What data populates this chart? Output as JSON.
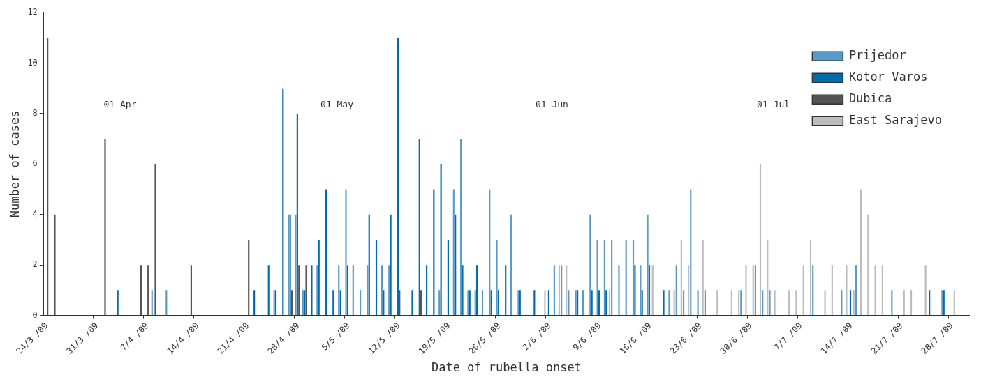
{
  "chart_data": {
    "type": "bar",
    "xlabel": "Date of rubella onset",
    "ylabel": "Number of cases",
    "categories": [
      "24/3 /09",
      null,
      null,
      null,
      null,
      null,
      null,
      "31/3 /09",
      null,
      null,
      null,
      null,
      null,
      null,
      "7/4 /09",
      null,
      null,
      null,
      null,
      null,
      null,
      "14/4 /09",
      null,
      null,
      null,
      null,
      null,
      null,
      "21/4 /09",
      null,
      null,
      null,
      null,
      null,
      null,
      "28/4 /09",
      null,
      null,
      null,
      null,
      null,
      null,
      "5/5 /09",
      null,
      null,
      null,
      null,
      null,
      null,
      "12/5 /09",
      null,
      null,
      null,
      null,
      null,
      null,
      "19/5 /09",
      null,
      null,
      null,
      null,
      null,
      null,
      "26/5 /09",
      null,
      null,
      null,
      null,
      null,
      null,
      "2/6 /09",
      null,
      null,
      null,
      null,
      null,
      null,
      "9/6 /09",
      null,
      null,
      null,
      null,
      null,
      null,
      "16/6 /09",
      null,
      null,
      null,
      null,
      null,
      null,
      "23/6 /09",
      null,
      null,
      null,
      null,
      null,
      null,
      "30/6 /09",
      null,
      null,
      null,
      null,
      null,
      null,
      "7/7 /09",
      null,
      null,
      null,
      null,
      null,
      null,
      "14/7 /09",
      null,
      null,
      null,
      null,
      null,
      null,
      "21/7 /09",
      null,
      null,
      null,
      null,
      null,
      null,
      "28/7 /09",
      null,
      null
    ],
    "series": [
      {
        "name": "Prijedor",
        "color": "#5a9ac9",
        "values": [
          0,
          0,
          0,
          0,
          0,
          0,
          0,
          0,
          0,
          0,
          0,
          0,
          0,
          0,
          0,
          1,
          0,
          1,
          0,
          0,
          0,
          0,
          0,
          0,
          0,
          0,
          0,
          0,
          0,
          0,
          0,
          0,
          1,
          0,
          4,
          4,
          1,
          0,
          2,
          0,
          0,
          2,
          5,
          2,
          1,
          2,
          0,
          2,
          2,
          0,
          0,
          0,
          0,
          0,
          0,
          1,
          0,
          5,
          7,
          1,
          1,
          1,
          5,
          3,
          0,
          4,
          1,
          0,
          0,
          0,
          0,
          2,
          2,
          1,
          1,
          1,
          4,
          3,
          3,
          3,
          2,
          3,
          3,
          2,
          4,
          0,
          0,
          1,
          2,
          1,
          5,
          1,
          1,
          0,
          0,
          0,
          0,
          1,
          0,
          2,
          1,
          1,
          0,
          0,
          0,
          0,
          0,
          2,
          0,
          0,
          0,
          1,
          0,
          2,
          0,
          0,
          0,
          0,
          1,
          0,
          0,
          0,
          0,
          0,
          0,
          1,
          0,
          0,
          0
        ]
      },
      {
        "name": "Kotor Varos",
        "color": "#006bad",
        "values": [
          0,
          0,
          0,
          0,
          0,
          0,
          0,
          0,
          0,
          0,
          1,
          0,
          0,
          0,
          0,
          0,
          0,
          0,
          0,
          0,
          0,
          0,
          0,
          0,
          0,
          0,
          0,
          0,
          0,
          1,
          0,
          2,
          1,
          9,
          4,
          8,
          1,
          2,
          3,
          5,
          1,
          1,
          2,
          0,
          0,
          4,
          3,
          1,
          4,
          11,
          0,
          1,
          7,
          2,
          5,
          6,
          3,
          4,
          2,
          1,
          2,
          0,
          1,
          1,
          2,
          0,
          1,
          0,
          1,
          0,
          1,
          0,
          0,
          0,
          1,
          0,
          1,
          1,
          1,
          0,
          0,
          0,
          2,
          1,
          2,
          0,
          1,
          0,
          0,
          0,
          0,
          0,
          0,
          0,
          0,
          0,
          0,
          0,
          0,
          0,
          0,
          0,
          0,
          0,
          0,
          0,
          0,
          0,
          0,
          0,
          0,
          0,
          1,
          0,
          0,
          0,
          0,
          0,
          0,
          0,
          0,
          0,
          0,
          1,
          0,
          1,
          0,
          0,
          0
        ]
      },
      {
        "name": "Dubica",
        "color": "#545454",
        "values": [
          11,
          4,
          0,
          0,
          0,
          0,
          0,
          0,
          7,
          0,
          0,
          0,
          0,
          2,
          2,
          6,
          0,
          0,
          0,
          0,
          2,
          0,
          0,
          0,
          0,
          0,
          0,
          0,
          3,
          0,
          0,
          0,
          0,
          0,
          1,
          2,
          2,
          0,
          0,
          0,
          0,
          0,
          0,
          0,
          0,
          0,
          0,
          0,
          0,
          1,
          0,
          0,
          1,
          0,
          0,
          0,
          0,
          0,
          0,
          0,
          0,
          0,
          0,
          0,
          0,
          0,
          0,
          0,
          0,
          0,
          0,
          0,
          0,
          0,
          0,
          0,
          0,
          0,
          0,
          0,
          0,
          0,
          0,
          0,
          0,
          0,
          0,
          0,
          0,
          0,
          0,
          0,
          0,
          0,
          0,
          0,
          0,
          0,
          0,
          0,
          0,
          0,
          0,
          0,
          0,
          0,
          0,
          0,
          0,
          0,
          0,
          0,
          0,
          0,
          0,
          0,
          0,
          0,
          0,
          0,
          0,
          0,
          0,
          0,
          0,
          0,
          0,
          0,
          0
        ]
      },
      {
        "name": "East Sarajevo",
        "color": "#bcbcbe",
        "values": [
          0,
          0,
          0,
          0,
          0,
          0,
          0,
          0,
          0,
          0,
          0,
          0,
          0,
          0,
          0,
          0,
          0,
          0,
          0,
          0,
          0,
          0,
          0,
          0,
          0,
          0,
          0,
          0,
          0,
          0,
          0,
          0,
          0,
          0,
          0,
          0,
          0,
          0,
          0,
          0,
          0,
          0,
          0,
          0,
          0,
          0,
          0,
          0,
          0,
          0,
          0,
          0,
          0,
          0,
          0,
          0,
          0,
          0,
          0,
          0,
          0,
          0,
          0,
          0,
          0,
          0,
          0,
          0,
          0,
          1,
          0,
          2,
          2,
          0,
          0,
          0,
          0,
          0,
          1,
          0,
          0,
          0,
          0,
          0,
          2,
          0,
          0,
          1,
          3,
          2,
          0,
          3,
          0,
          1,
          0,
          1,
          1,
          2,
          2,
          6,
          3,
          1,
          0,
          1,
          1,
          2,
          3,
          0,
          1,
          2,
          0,
          2,
          1,
          5,
          4,
          2,
          2,
          0,
          0,
          1,
          1,
          0,
          2,
          0,
          0,
          0,
          1,
          0,
          0
        ]
      }
    ],
    "ylim": [
      0,
      12
    ],
    "yticks": [
      0,
      2,
      4,
      6,
      8,
      10,
      12
    ],
    "legend": "top right",
    "annotations": [
      "01-Apr",
      "01-May",
      "01-Jun",
      "01-Jul"
    ]
  }
}
